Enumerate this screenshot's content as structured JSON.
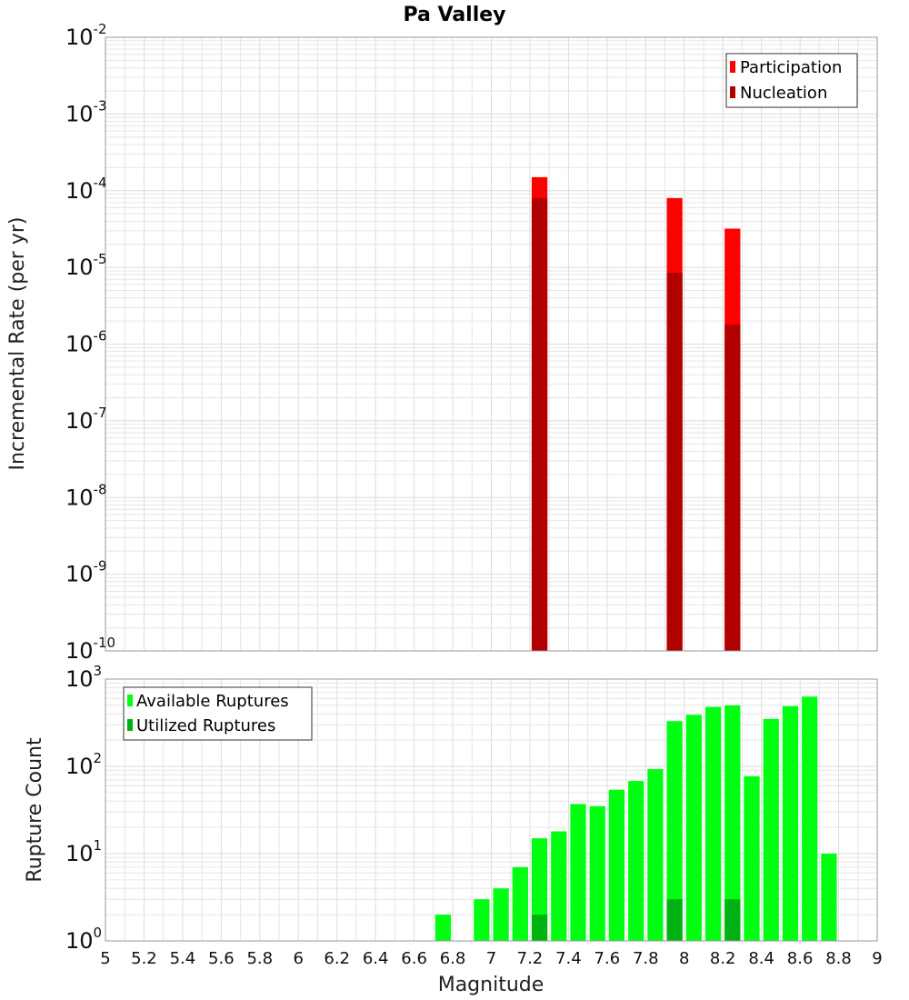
{
  "chart_data": [
    {
      "type": "bar",
      "title": "Pa Valley",
      "xlabel": "",
      "ylabel": "Incremental Rate (per yr)",
      "yscale": "log",
      "ylim_exponents": [
        -10,
        -2
      ],
      "xlim": [
        5,
        9
      ],
      "grid": true,
      "legend_placement": "top-right",
      "series": [
        {
          "name": "Participation",
          "color": "#ff0000",
          "points": [
            {
              "x": 7.25,
              "y": 0.00015
            },
            {
              "x": 7.95,
              "y": 8e-05
            },
            {
              "x": 8.25,
              "y": 3.2e-05
            }
          ]
        },
        {
          "name": "Nucleation",
          "color": "#b00000",
          "points": [
            {
              "x": 7.25,
              "y": 8e-05
            },
            {
              "x": 7.95,
              "y": 8.5e-06
            },
            {
              "x": 8.25,
              "y": 1.8e-06
            }
          ]
        }
      ]
    },
    {
      "type": "bar",
      "title": "",
      "xlabel": "Magnitude",
      "ylabel": "Rupture Count",
      "yscale": "log",
      "ylim_exponents": [
        0,
        3
      ],
      "xlim": [
        5,
        9
      ],
      "grid": true,
      "legend_placement": "top-left",
      "series": [
        {
          "name": "Available Ruptures",
          "color": "#00ff11",
          "points": [
            {
              "x": 6.75,
              "y": 2
            },
            {
              "x": 6.95,
              "y": 3
            },
            {
              "x": 7.05,
              "y": 4
            },
            {
              "x": 7.15,
              "y": 7
            },
            {
              "x": 7.25,
              "y": 15
            },
            {
              "x": 7.35,
              "y": 18
            },
            {
              "x": 7.45,
              "y": 37
            },
            {
              "x": 7.55,
              "y": 35
            },
            {
              "x": 7.65,
              "y": 54
            },
            {
              "x": 7.75,
              "y": 68
            },
            {
              "x": 7.85,
              "y": 93
            },
            {
              "x": 7.95,
              "y": 330
            },
            {
              "x": 8.05,
              "y": 390
            },
            {
              "x": 8.15,
              "y": 480
            },
            {
              "x": 8.25,
              "y": 500
            },
            {
              "x": 8.35,
              "y": 77
            },
            {
              "x": 8.45,
              "y": 350
            },
            {
              "x": 8.55,
              "y": 490
            },
            {
              "x": 8.65,
              "y": 630
            },
            {
              "x": 8.75,
              "y": 10
            }
          ]
        },
        {
          "name": "Utilized Ruptures",
          "color": "#00b211",
          "points": [
            {
              "x": 7.25,
              "y": 2
            },
            {
              "x": 7.95,
              "y": 3
            },
            {
              "x": 8.25,
              "y": 3
            }
          ]
        }
      ],
      "xticks": [
        "5",
        "5.2",
        "5.4",
        "5.6",
        "5.8",
        "6",
        "6.2",
        "6.4",
        "6.6",
        "6.8",
        "7",
        "7.2",
        "7.4",
        "7.6",
        "7.8",
        "8",
        "8.2",
        "8.4",
        "8.6",
        "8.8",
        "9"
      ]
    }
  ]
}
